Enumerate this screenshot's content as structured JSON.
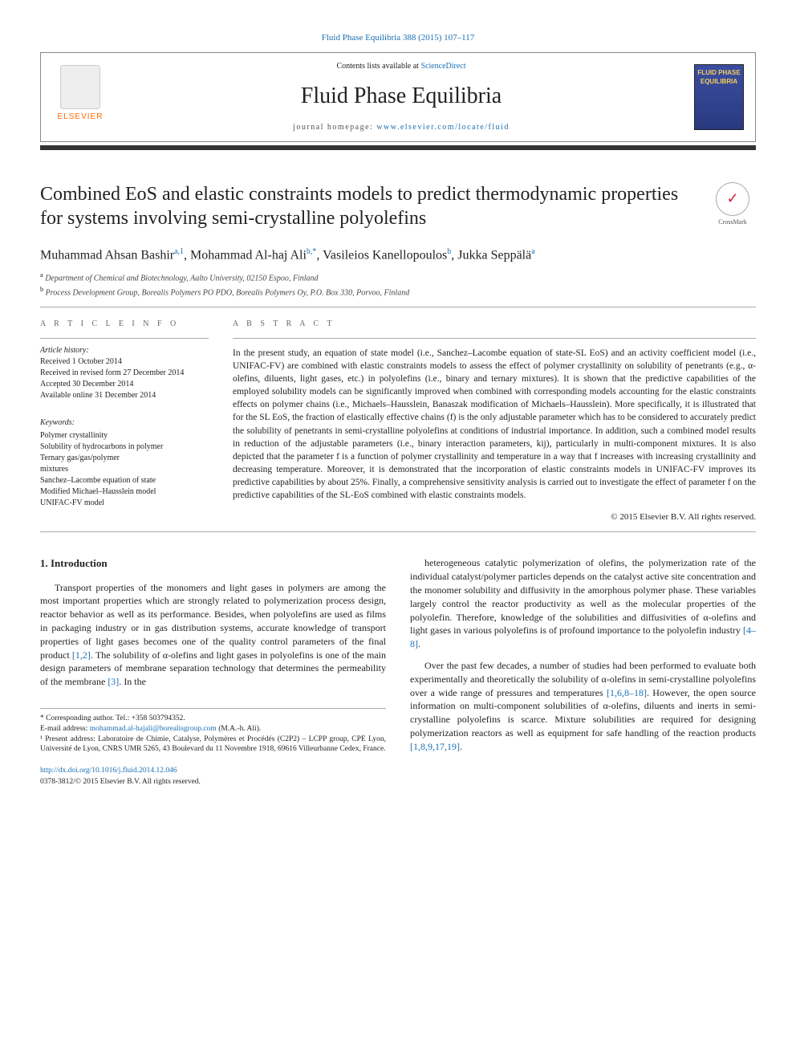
{
  "top_link": {
    "label": "Fluid Phase Equilibria 388 (2015) 107–117"
  },
  "header": {
    "contents_prefix": "Contents lists available at ",
    "contents_link": "ScienceDirect",
    "journal_name": "Fluid Phase Equilibria",
    "homepage_prefix": "journal homepage: ",
    "homepage_url": "www.elsevier.com/locate/fluid",
    "elsevier_word": "ELSEVIER",
    "cover_line1": "FLUID PHASE",
    "cover_line2": "EQUILIBRIA"
  },
  "crossmark": {
    "label": "CrossMark",
    "glyph": "✓"
  },
  "title": "Combined EoS and elastic constraints models to predict thermodynamic properties for systems involving semi-crystalline polyolefins",
  "authors_html": {
    "a1": "Muhammad Ahsan Bashir",
    "a1_sup": "a,1",
    "a2": "Mohammad Al-haj Ali",
    "a2_sup": "b,*",
    "a3": "Vasileios Kanellopoulos",
    "a3_sup": "b",
    "a4": "Jukka Seppälä",
    "a4_sup": "a"
  },
  "affiliations": {
    "a": "Department of Chemical and Biotechnology, Aalto University, 02150 Espoo, Finland",
    "b": "Process Development Group, Borealis Polymers PO PDO, Borealis Polymers Oy, P.O. Box 330, Porvoo, Finland"
  },
  "article_info": {
    "label": "A R T I C L E  I N F O",
    "history_label": "Article history:",
    "received": "Received 1 October 2014",
    "revised": "Received in revised form 27 December 2014",
    "accepted": "Accepted 30 December 2014",
    "online": "Available online 31 December 2014",
    "keywords_label": "Keywords:",
    "keywords": [
      "Polymer crystallinity",
      "Solubility of hydrocarbons in polymer",
      "Ternary gas/gas/polymer",
      "mixtures",
      "Sanchez–Lacombe equation of state",
      "Modified Michael–Hausslein model",
      "UNIFAC-FV model"
    ]
  },
  "abstract": {
    "label": "A B S T R A C T",
    "text": "In the present study, an equation of state model (i.e., Sanchez–Lacombe equation of state-SL EoS) and an activity coefficient model (i.e., UNIFAC-FV) are combined with elastic constraints models to assess the effect of polymer crystallinity on solubility of penetrants (e.g., α-olefins, diluents, light gases, etc.) in polyolefins (i.e., binary and ternary mixtures). It is shown that the predictive capabilities of the employed solubility models can be significantly improved when combined with corresponding models accounting for the elastic constraints effects on polymer chains (i.e., Michaels–Hausslein, Banaszak modification of Michaels–Hausslein). More specifically, it is illustrated that for the SL EoS, the fraction of elastically effective chains (f) is the only adjustable parameter which has to be considered to accurately predict the solubility of penetrants in semi-crystalline polyolefins at conditions of industrial importance. In addition, such a combined model results in reduction of the adjustable parameters (i.e., binary interaction parameters, kij), particularly in multi-component mixtures. It is also depicted that the parameter f is a function of polymer crystallinity and temperature in a way that f increases with increasing crystallinity and decreasing temperature. Moreover, it is demonstrated that the incorporation of elastic constraints models in UNIFAC-FV improves its predictive capabilities by about 25%. Finally, a comprehensive sensitivity analysis is carried out to investigate the effect of parameter f on the predictive capabilities of the SL-EoS combined with elastic constraints models.",
    "copyright": "© 2015 Elsevier B.V. All rights reserved."
  },
  "intro": {
    "heading": "1. Introduction",
    "col1": "Transport properties of the monomers and light gases in polymers are among the most important properties which are strongly related to polymerization process design, reactor behavior as well as its performance. Besides, when polyolefins are used as films in packaging industry or in gas distribution systems, accurate knowledge of transport properties of light gases becomes one of the quality control parameters of the final product [1,2]. The solubility of α-olefins and light gases in polyolefins is one of the main design parameters of membrane separation technology that determines the permeability of the membrane [3]. In the",
    "col2a": "heterogeneous catalytic polymerization of olefins, the polymerization rate of the individual catalyst/polymer particles depends on the catalyst active site concentration and the monomer solubility and diffusivity in the amorphous polymer phase. These variables largely control the reactor productivity as well as the molecular properties of the polyolefin. Therefore, knowledge of the solubilities and diffusivities of α-olefins and light gases in various polyolefins is of profound importance to the polyolefin industry [4–8].",
    "col2b": "Over the past few decades, a number of studies had been performed to evaluate both experimentally and theoretically the solubility of α-olefins in semi-crystalline polyolefins over a wide range of pressures and temperatures [1,6,8–18]. However, the open source information on multi-component solubilities of α-olefins, diluents and inerts in semi-crystalline polyolefins is scarce. Mixture solubilities are required for designing polymerization reactors as well as equipment for safe handling of the reaction products [1,8,9,17,19]."
  },
  "footnotes": {
    "corr": "* Corresponding author. Tel.: +358 503794352.",
    "email_label": "E-mail address: ",
    "email": "mohammad.al-hajali@borealisgroup.com",
    "email_suffix": " (M.A.-h. Ali).",
    "present": "¹ Present address: Laboratoire de Chimie, Catalyse, Polymères et Procédés (C2P2) – LCPP group, CPE Lyon, Université de Lyon, CNRS UMR 5265, 43 Boulevard du 11 Novembre 1918, 69616 Villeurbanne Cedex, France."
  },
  "doi": {
    "url": "http://dx.doi.org/10.1016/j.fluid.2014.12.046",
    "issn_line": "0378-3812/© 2015 Elsevier B.V. All rights reserved."
  },
  "colors": {
    "link": "#1a6fb3",
    "elsevier_orange": "#ff6a00",
    "rule_dark": "#333333"
  }
}
